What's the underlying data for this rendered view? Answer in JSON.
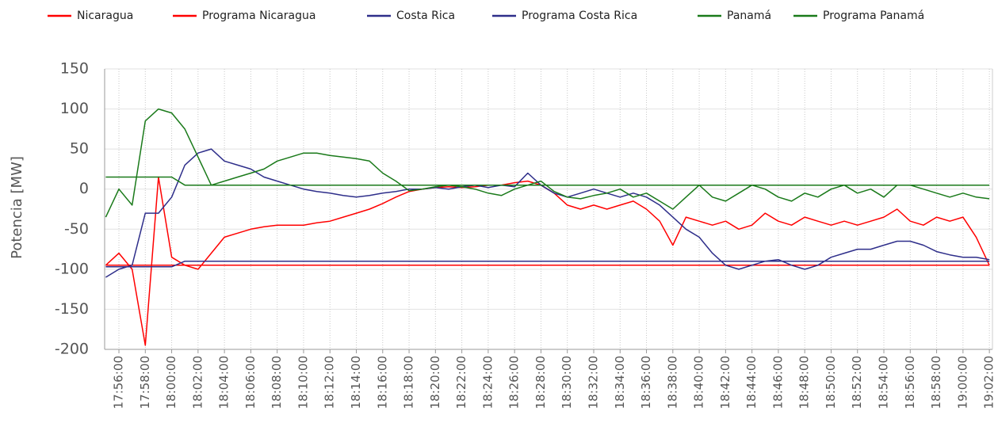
{
  "chart_data": {
    "type": "line",
    "ylabel": "Potencia [MW]",
    "x": [
      "17:55:00",
      "17:56:00",
      "17:57:00",
      "17:58:00",
      "17:59:00",
      "18:00:00",
      "18:01:00",
      "18:02:00",
      "18:03:00",
      "18:04:00",
      "18:05:00",
      "18:06:00",
      "18:07:00",
      "18:08:00",
      "18:09:00",
      "18:10:00",
      "18:11:00",
      "18:12:00",
      "18:13:00",
      "18:14:00",
      "18:15:00",
      "18:16:00",
      "18:17:00",
      "18:18:00",
      "18:19:00",
      "18:20:00",
      "18:21:00",
      "18:22:00",
      "18:23:00",
      "18:24:00",
      "18:25:00",
      "18:26:00",
      "18:27:00",
      "18:28:00",
      "18:29:00",
      "18:30:00",
      "18:31:00",
      "18:32:00",
      "18:33:00",
      "18:34:00",
      "18:35:00",
      "18:36:00",
      "18:37:00",
      "18:38:00",
      "18:39:00",
      "18:40:00",
      "18:41:00",
      "18:42:00",
      "18:43:00",
      "18:44:00",
      "18:45:00",
      "18:46:00",
      "18:47:00",
      "18:48:00",
      "18:49:00",
      "18:50:00",
      "18:51:00",
      "18:52:00",
      "18:53:00",
      "18:54:00",
      "18:55:00",
      "18:56:00",
      "18:57:00",
      "18:58:00",
      "18:59:00",
      "19:00:00",
      "19:01:00",
      "19:02:00"
    ],
    "series": [
      {
        "name": "Nicaragua",
        "color": "#ff0000",
        "values": [
          -95,
          -80,
          -100,
          -195,
          15,
          -85,
          -95,
          -100,
          -80,
          -60,
          -55,
          -50,
          -47,
          -45,
          -45,
          -45,
          -42,
          -40,
          -35,
          -30,
          -25,
          -18,
          -10,
          -3,
          0,
          2,
          3,
          2,
          3,
          5,
          5,
          8,
          10,
          5,
          -5,
          -20,
          -25,
          -20,
          -25,
          -20,
          -15,
          -25,
          -40,
          -70,
          -35,
          -40,
          -45,
          -40,
          -50,
          -45,
          -30,
          -40,
          -45,
          -35,
          -40,
          -45,
          -40,
          -45,
          -40,
          -35,
          -25,
          -40,
          -45,
          -35,
          -40,
          -35,
          -60,
          -95
        ]
      },
      {
        "name": "Programa Nicaragua",
        "color": "#ff0000",
        "values": [
          -95,
          -95,
          -95,
          -95,
          -95,
          -95,
          -95,
          -95,
          -95,
          -95,
          -95,
          -95,
          -95,
          -95,
          -95,
          -95,
          -95,
          -95,
          -95,
          -95,
          -95,
          -95,
          -95,
          -95,
          -95,
          -95,
          -95,
          -95,
          -95,
          -95,
          -95,
          -95,
          -95,
          -95,
          -95,
          -95,
          -95,
          -95,
          -95,
          -95,
          -95,
          -95,
          -95,
          -95,
          -95,
          -95,
          -95,
          -95,
          -95,
          -95,
          -95,
          -95,
          -95,
          -95,
          -95,
          -95,
          -95,
          -95,
          -95,
          -95,
          -95,
          -95,
          -95,
          -95,
          -95,
          -95,
          -95,
          -95
        ]
      },
      {
        "name": "Costa Rica",
        "color": "#2e2e8a",
        "values": [
          -110,
          -100,
          -95,
          -30,
          -30,
          -10,
          30,
          45,
          50,
          35,
          30,
          25,
          15,
          10,
          5,
          0,
          -3,
          -5,
          -8,
          -10,
          -8,
          -5,
          -3,
          0,
          0,
          2,
          0,
          3,
          5,
          2,
          5,
          3,
          20,
          5,
          -5,
          -10,
          -5,
          0,
          -5,
          -10,
          -5,
          -10,
          -20,
          -35,
          -50,
          -60,
          -80,
          -95,
          -100,
          -95,
          -90,
          -88,
          -95,
          -100,
          -95,
          -85,
          -80,
          -75,
          -75,
          -70,
          -65,
          -65,
          -70,
          -78,
          -82,
          -85,
          -85,
          -88
        ]
      },
      {
        "name": "Programa Costa Rica",
        "color": "#2e2e8a",
        "values": [
          -97,
          -97,
          -97,
          -97,
          -97,
          -97,
          -90,
          -90,
          -90,
          -90,
          -90,
          -90,
          -90,
          -90,
          -90,
          -90,
          -90,
          -90,
          -90,
          -90,
          -90,
          -90,
          -90,
          -90,
          -90,
          -90,
          -90,
          -90,
          -90,
          -90,
          -90,
          -90,
          -90,
          -90,
          -90,
          -90,
          -90,
          -90,
          -90,
          -90,
          -90,
          -90,
          -90,
          -90,
          -90,
          -90,
          -90,
          -90,
          -90,
          -90,
          -90,
          -90,
          -90,
          -90,
          -90,
          -90,
          -90,
          -90,
          -90,
          -90,
          -90,
          -90,
          -90,
          -90,
          -90,
          -90,
          -90,
          -90
        ]
      },
      {
        "name": "Panamá",
        "color": "#1a7a1a",
        "values": [
          -35,
          0,
          -20,
          85,
          100,
          95,
          75,
          40,
          5,
          10,
          15,
          20,
          25,
          35,
          40,
          45,
          45,
          42,
          40,
          38,
          35,
          20,
          10,
          -2,
          0,
          3,
          5,
          3,
          0,
          -5,
          -8,
          0,
          5,
          10,
          -3,
          -10,
          -12,
          -8,
          -5,
          0,
          -10,
          -5,
          -15,
          -25,
          -10,
          5,
          -10,
          -15,
          -5,
          5,
          0,
          -10,
          -15,
          -5,
          -10,
          0,
          5,
          -5,
          0,
          -10,
          5,
          5,
          0,
          -5,
          -10,
          -5,
          -10,
          -12
        ]
      },
      {
        "name": "Programa Panamá",
        "color": "#1a7a1a",
        "values": [
          15,
          15,
          15,
          15,
          15,
          15,
          5,
          5,
          5,
          5,
          5,
          5,
          5,
          5,
          5,
          5,
          5,
          5,
          5,
          5,
          5,
          5,
          5,
          5,
          5,
          5,
          5,
          5,
          5,
          5,
          5,
          5,
          5,
          5,
          5,
          5,
          5,
          5,
          5,
          5,
          5,
          5,
          5,
          5,
          5,
          5,
          5,
          5,
          5,
          5,
          5,
          5,
          5,
          5,
          5,
          5,
          5,
          5,
          5,
          5,
          5,
          5,
          5,
          5,
          5,
          5,
          5,
          5
        ]
      }
    ],
    "xlim": [
      "17:54:55",
      "19:02:14"
    ],
    "xticks": [
      "17:56:00",
      "17:58:00",
      "18:00:00",
      "18:02:00",
      "18:04:00",
      "18:06:00",
      "18:08:00",
      "18:10:00",
      "18:12:00",
      "18:14:00",
      "18:16:00",
      "18:18:00",
      "18:20:00",
      "18:22:00",
      "18:24:00",
      "18:26:00",
      "18:28:00",
      "18:30:00",
      "18:32:00",
      "18:34:00",
      "18:36:00",
      "18:38:00",
      "18:40:00",
      "18:42:00",
      "18:44:00",
      "18:46:00",
      "18:48:00",
      "18:50:00",
      "18:52:00",
      "18:54:00",
      "18:56:00",
      "18:58:00",
      "19:00:00",
      "19:02:00"
    ],
    "ylim": [
      -200,
      150
    ],
    "yticks": [
      -200,
      -150,
      -100,
      -50,
      0,
      50,
      100,
      150
    ],
    "grid": true,
    "legend": "top"
  }
}
